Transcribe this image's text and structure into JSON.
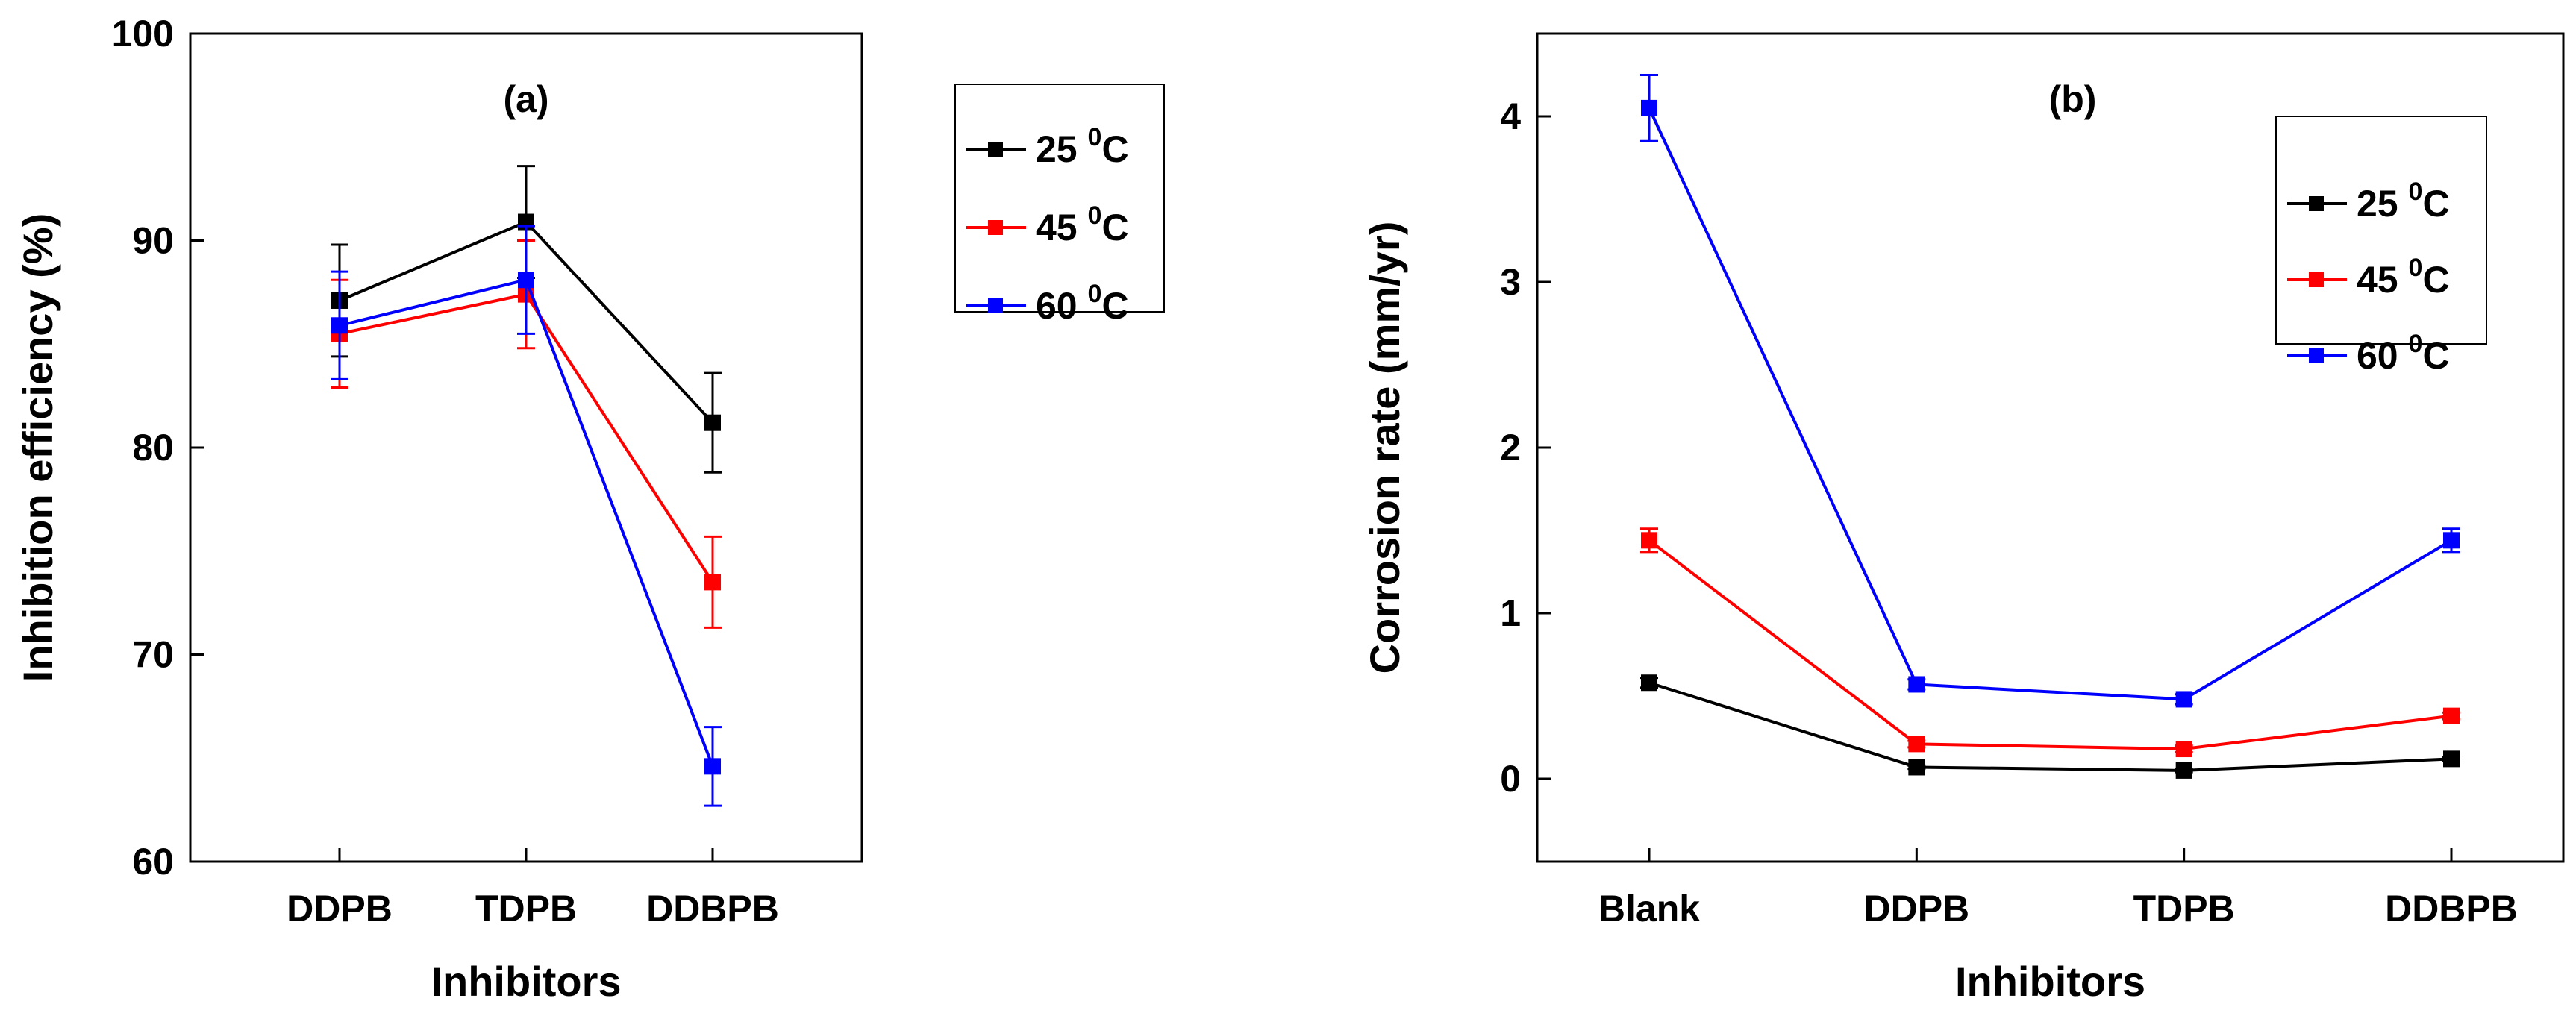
{
  "chart_data": [
    {
      "type": "line",
      "panel_label": "(a)",
      "xlabel": "Inhibitors",
      "ylabel": "Inhibition efficiency (%)",
      "categories": [
        "DDPB",
        "TDPB",
        "DDBPB"
      ],
      "ylim": [
        60,
        100
      ],
      "yticks": [
        60,
        70,
        80,
        90,
        100
      ],
      "legend": "top-right",
      "series": [
        {
          "name": "25",
          "unit_sup": "0",
          "unit": "C",
          "color": "#000000",
          "values": [
            87.1,
            90.9,
            81.2
          ],
          "errors": [
            2.7,
            2.7,
            2.4
          ]
        },
        {
          "name": "45",
          "unit_sup": "0",
          "unit": "C",
          "color": "#ff0000",
          "values": [
            85.5,
            87.4,
            73.5
          ],
          "errors": [
            2.6,
            2.6,
            2.2
          ]
        },
        {
          "name": "60",
          "unit_sup": "0",
          "unit": "C",
          "color": "#0000ff",
          "values": [
            85.9,
            88.1,
            64.6
          ],
          "errors": [
            2.6,
            2.6,
            1.9
          ]
        }
      ]
    },
    {
      "type": "line",
      "panel_label": "(b)",
      "xlabel": "Inhibitors",
      "ylabel": "Corrosion rate (mm/yr)",
      "categories": [
        "Blank",
        "DDPB",
        "TDPB",
        "DDBPB"
      ],
      "ylim": [
        -0.5,
        4.5
      ],
      "yticks": [
        0,
        1,
        2,
        3,
        4
      ],
      "legend": "top-right",
      "series": [
        {
          "name": "25",
          "unit_sup": "0",
          "unit": "C",
          "color": "#000000",
          "values": [
            0.58,
            0.07,
            0.05,
            0.12
          ],
          "errors": [
            0.03,
            0.01,
            0.01,
            0.01
          ]
        },
        {
          "name": "45",
          "unit_sup": "0",
          "unit": "C",
          "color": "#ff0000",
          "values": [
            1.44,
            0.21,
            0.18,
            0.38
          ],
          "errors": [
            0.07,
            0.02,
            0.02,
            0.02
          ]
        },
        {
          "name": "60",
          "unit_sup": "0",
          "unit": "C",
          "color": "#0000ff",
          "values": [
            4.05,
            0.57,
            0.48,
            1.44
          ],
          "errors": [
            0.2,
            0.03,
            0.03,
            0.07
          ]
        }
      ]
    }
  ]
}
